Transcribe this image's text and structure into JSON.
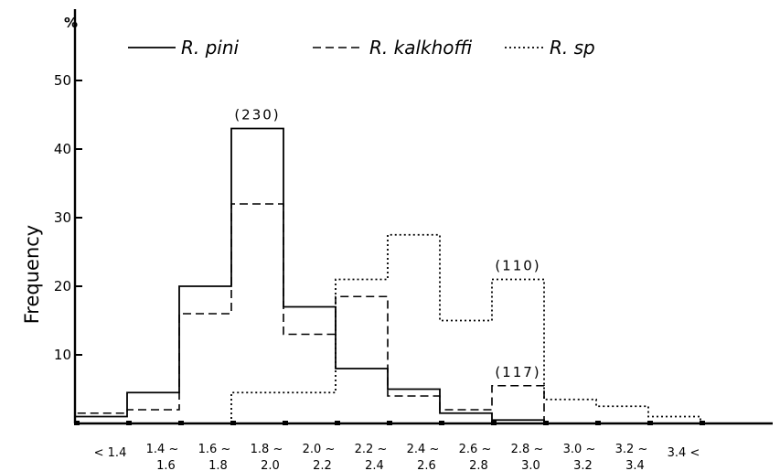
{
  "chart_data": {
    "type": "histogram-step",
    "title": "",
    "xlabel": "",
    "ylabel": "Frequency",
    "y_unit": "%",
    "ylim": [
      0,
      55
    ],
    "yticks": [
      10,
      20,
      30,
      40,
      50
    ],
    "categories": [
      [
        "<",
        "1.4"
      ],
      [
        "1.4 ~",
        "1.6"
      ],
      [
        "1.6 ~",
        "1.8"
      ],
      [
        "1.8 ~",
        "2.0"
      ],
      [
        "2.0 ~",
        "2.2"
      ],
      [
        "2.2 ~",
        "2.4"
      ],
      [
        "2.4 ~",
        "2.6"
      ],
      [
        "2.6 ~",
        "2.8"
      ],
      [
        "2.8 ~",
        "3.0"
      ],
      [
        "3.0 ~",
        "3.2"
      ],
      [
        "3.2 ~",
        "3.4"
      ],
      [
        "3.4",
        "<"
      ]
    ],
    "legend_position": "top",
    "series": [
      {
        "name": "R. pini",
        "style": "solid",
        "values": [
          1,
          4.5,
          20,
          43,
          17,
          8,
          5,
          1.5,
          0.5,
          0,
          0,
          0
        ]
      },
      {
        "name": "R. kalkhoffi",
        "style": "dashed",
        "values": [
          1.5,
          2,
          16,
          32,
          13,
          18.5,
          4,
          2,
          5.5,
          0,
          0,
          0
        ]
      },
      {
        "name": "R. sp",
        "style": "dotted",
        "values": [
          0,
          0,
          0,
          4.5,
          4.5,
          21,
          27.5,
          15,
          21,
          3.5,
          2.5,
          1
        ]
      }
    ],
    "annotations": [
      {
        "text": "(230)",
        "category_index": 3,
        "series": "R. pini"
      },
      {
        "text": "(110)",
        "category_index": 8,
        "series": "R. sp"
      },
      {
        "text": "(117)",
        "category_index": 8,
        "series": "R. kalkhoffi"
      }
    ]
  }
}
